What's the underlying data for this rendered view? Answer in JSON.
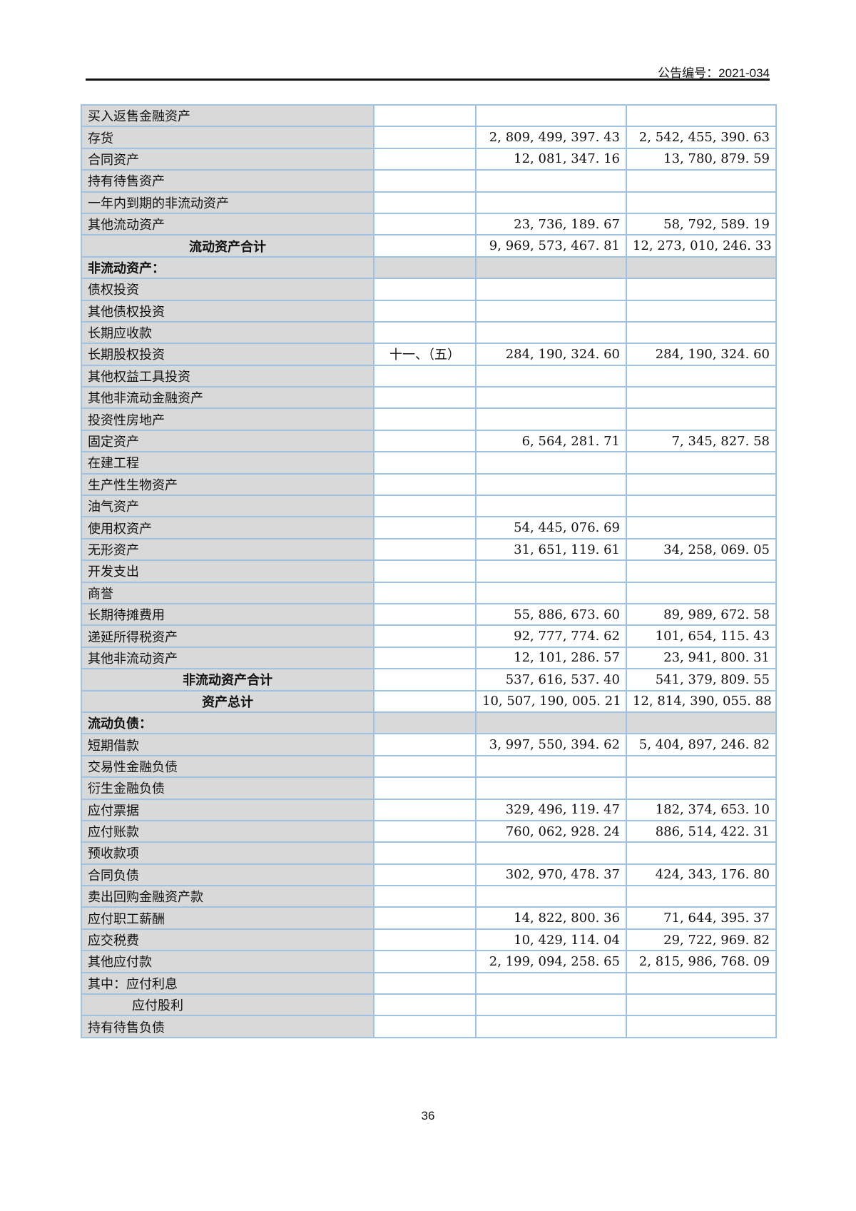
{
  "header": {
    "announcement_no": "公告编号：2021-034"
  },
  "page_number": "36",
  "colors": {
    "label_fill": "#d9d9d9",
    "grid": "#9fc2e2"
  },
  "rows": [
    {
      "name": "买入返售金融资产",
      "note": "",
      "current": "",
      "previous": "",
      "type": "item"
    },
    {
      "name": "存货",
      "note": "",
      "current": "2, 809, 499, 397. 43",
      "previous": "2, 542, 455, 390. 63",
      "type": "item"
    },
    {
      "name": "合同资产",
      "note": "",
      "current": "12, 081, 347. 16",
      "previous": "13, 780, 879. 59",
      "type": "item"
    },
    {
      "name": "持有待售资产",
      "note": "",
      "current": "",
      "previous": "",
      "type": "item"
    },
    {
      "name": "一年内到期的非流动资产",
      "note": "",
      "current": "",
      "previous": "",
      "type": "item"
    },
    {
      "name": "其他流动资产",
      "note": "",
      "current": "23, 736, 189. 67",
      "previous": "58, 792, 589. 19",
      "type": "item"
    },
    {
      "name": "流动资产合计",
      "note": "",
      "current": "9, 969, 573, 467. 81",
      "previous": "12, 273, 010, 246. 33",
      "type": "total"
    },
    {
      "name": "非流动资产：",
      "note": "",
      "current": "",
      "previous": "",
      "type": "section"
    },
    {
      "name": "债权投资",
      "note": "",
      "current": "",
      "previous": "",
      "type": "item"
    },
    {
      "name": "其他债权投资",
      "note": "",
      "current": "",
      "previous": "",
      "type": "item"
    },
    {
      "name": "长期应收款",
      "note": "",
      "current": "",
      "previous": "",
      "type": "item"
    },
    {
      "name": "长期股权投资",
      "note": "十一、（五）",
      "current": "284, 190, 324. 60",
      "previous": "284, 190, 324. 60",
      "type": "item"
    },
    {
      "name": "其他权益工具投资",
      "note": "",
      "current": "",
      "previous": "",
      "type": "item"
    },
    {
      "name": "其他非流动金融资产",
      "note": "",
      "current": "",
      "previous": "",
      "type": "item"
    },
    {
      "name": "投资性房地产",
      "note": "",
      "current": "",
      "previous": "",
      "type": "item"
    },
    {
      "name": "固定资产",
      "note": "",
      "current": "6, 564, 281. 71",
      "previous": "7, 345, 827. 58",
      "type": "item"
    },
    {
      "name": "在建工程",
      "note": "",
      "current": "",
      "previous": "",
      "type": "item"
    },
    {
      "name": "生产性生物资产",
      "note": "",
      "current": "",
      "previous": "",
      "type": "item"
    },
    {
      "name": "油气资产",
      "note": "",
      "current": "",
      "previous": "",
      "type": "item"
    },
    {
      "name": "使用权资产",
      "note": "",
      "current": "54, 445, 076. 69",
      "previous": "",
      "type": "item"
    },
    {
      "name": "无形资产",
      "note": "",
      "current": "31, 651, 119. 61",
      "previous": "34, 258, 069. 05",
      "type": "item"
    },
    {
      "name": "开发支出",
      "note": "",
      "current": "",
      "previous": "",
      "type": "item"
    },
    {
      "name": "商誉",
      "note": "",
      "current": "",
      "previous": "",
      "type": "item"
    },
    {
      "name": "长期待摊费用",
      "note": "",
      "current": "55, 886, 673. 60",
      "previous": "89, 989, 672. 58",
      "type": "item"
    },
    {
      "name": "递延所得税资产",
      "note": "",
      "current": "92, 777, 774. 62",
      "previous": "101, 654, 115. 43",
      "type": "item"
    },
    {
      "name": "其他非流动资产",
      "note": "",
      "current": "12, 101, 286. 57",
      "previous": "23, 941, 800. 31",
      "type": "item"
    },
    {
      "name": "非流动资产合计",
      "note": "",
      "current": "537, 616, 537. 40",
      "previous": "541, 379, 809. 55",
      "type": "total"
    },
    {
      "name": "资产总计",
      "note": "",
      "current": "10, 507, 190, 005. 21",
      "previous": "12, 814, 390, 055. 88",
      "type": "total"
    },
    {
      "name": "流动负债：",
      "note": "",
      "current": "",
      "previous": "",
      "type": "section"
    },
    {
      "name": "短期借款",
      "note": "",
      "current": "3, 997, 550, 394. 62",
      "previous": "5, 404, 897, 246. 82",
      "type": "item"
    },
    {
      "name": "交易性金融负债",
      "note": "",
      "current": "",
      "previous": "",
      "type": "item"
    },
    {
      "name": "衍生金融负债",
      "note": "",
      "current": "",
      "previous": "",
      "type": "item"
    },
    {
      "name": "应付票据",
      "note": "",
      "current": "329, 496, 119. 47",
      "previous": "182, 374, 653. 10",
      "type": "item"
    },
    {
      "name": "应付账款",
      "note": "",
      "current": "760, 062, 928. 24",
      "previous": "886, 514, 422. 31",
      "type": "item"
    },
    {
      "name": "预收款项",
      "note": "",
      "current": "",
      "previous": "",
      "type": "item"
    },
    {
      "name": "合同负债",
      "note": "",
      "current": "302, 970, 478. 37",
      "previous": "424, 343, 176. 80",
      "type": "item"
    },
    {
      "name": "卖出回购金融资产款",
      "note": "",
      "current": "",
      "previous": "",
      "type": "item"
    },
    {
      "name": "应付职工薪酬",
      "note": "",
      "current": "14, 822, 800. 36",
      "previous": "71, 644, 395. 37",
      "type": "item"
    },
    {
      "name": "应交税费",
      "note": "",
      "current": "10, 429, 114. 04",
      "previous": "29, 722, 969. 82",
      "type": "item"
    },
    {
      "name": "其他应付款",
      "note": "",
      "current": "2, 199, 094, 258. 65",
      "previous": "2, 815, 986, 768. 09",
      "type": "item"
    },
    {
      "name": "其中：应付利息",
      "note": "",
      "current": "",
      "previous": "",
      "type": "item"
    },
    {
      "name": "应付股利",
      "note": "",
      "current": "",
      "previous": "",
      "type": "indent"
    },
    {
      "name": "持有待售负债",
      "note": "",
      "current": "",
      "previous": "",
      "type": "item"
    }
  ]
}
